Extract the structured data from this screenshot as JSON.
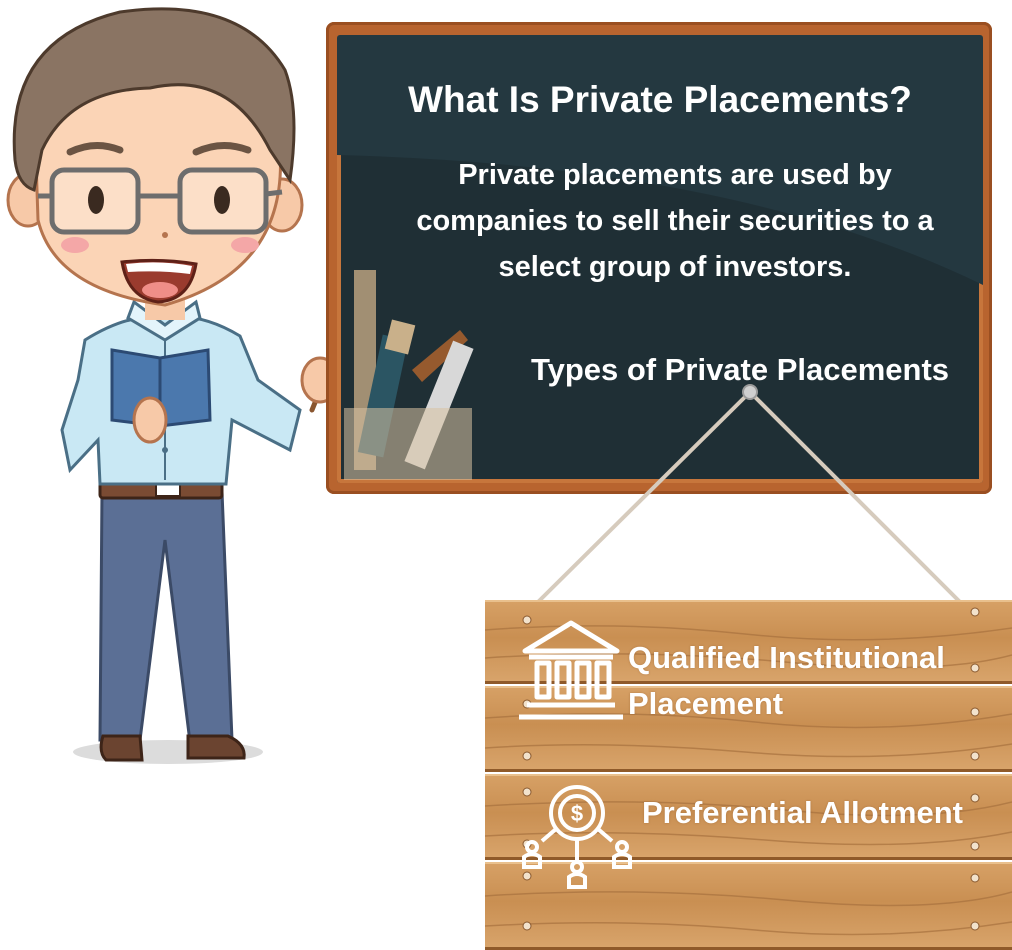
{
  "board": {
    "title": "What Is Private Placements?",
    "description": "Private placements are used by companies to sell their securities to a select group of investors.",
    "subtitle": "Types of Private Placements"
  },
  "sign": {
    "items": [
      {
        "label": "Qualified Institutional Placement",
        "icon": "bank-building-icon"
      },
      {
        "label": "Preferential Allotment",
        "icon": "dollar-network-icon"
      }
    ]
  },
  "colors": {
    "board": "#1f2f35",
    "frame": "#b8642f",
    "wood": "#d19a5c",
    "shirt": "#c9e8f4",
    "trousers": "#5b6f95"
  }
}
